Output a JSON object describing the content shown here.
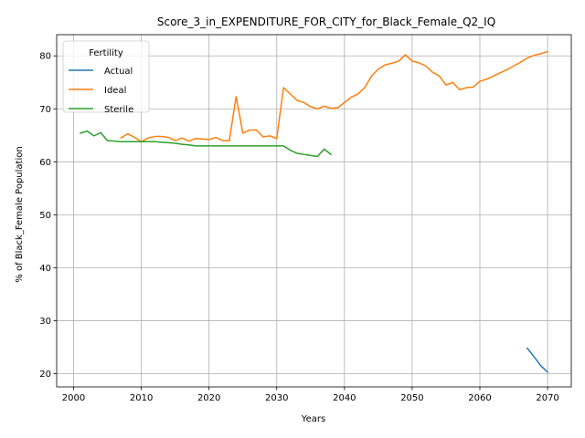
{
  "chart_data": {
    "type": "line",
    "title": "Score_3_in_EXPENDITURE_FOR_CITY_for_Black_Female_Q2_IQ",
    "xlabel": "Years",
    "ylabel": "% of Black_Female Population",
    "xlim": [
      1997.5,
      2073.5
    ],
    "ylim": [
      17.5,
      84
    ],
    "xticks": [
      2000,
      2010,
      2020,
      2030,
      2040,
      2050,
      2060,
      2070
    ],
    "yticks": [
      20,
      30,
      40,
      50,
      60,
      70,
      80
    ],
    "grid": true,
    "legend": {
      "title": "Fertility",
      "placement": "upper-left"
    },
    "series": [
      {
        "name": "Actual",
        "color": "#1f77b4",
        "x": [
          2067,
          2068,
          2069,
          2070
        ],
        "y": [
          24.8,
          23.2,
          21.5,
          20.3
        ]
      },
      {
        "name": "Ideal",
        "color": "#ff7f0e",
        "x": [
          2007,
          2008,
          2009,
          2010,
          2011,
          2012,
          2013,
          2014,
          2015,
          2016,
          2017,
          2018,
          2019,
          2020,
          2021,
          2022,
          2023,
          2024,
          2025,
          2026,
          2027,
          2028,
          2029,
          2030,
          2031,
          2032,
          2033,
          2034,
          2035,
          2036,
          2037,
          2038,
          2039,
          2040,
          2041,
          2042,
          2043,
          2044,
          2045,
          2046,
          2047,
          2048,
          2049,
          2050,
          2051,
          2052,
          2053,
          2054,
          2055,
          2056,
          2057,
          2058,
          2059,
          2060,
          2061,
          2062,
          2063,
          2064,
          2065,
          2066,
          2067,
          2068,
          2069,
          2070
        ],
        "y": [
          64.5,
          65.3,
          64.6,
          63.8,
          64.5,
          64.8,
          64.8,
          64.6,
          64.0,
          64.5,
          63.9,
          64.4,
          64.3,
          64.2,
          64.6,
          64.0,
          64.0,
          72.3,
          65.4,
          66.0,
          66.0,
          64.7,
          64.9,
          64.4,
          74.0,
          72.8,
          71.6,
          71.2,
          70.4,
          70.0,
          70.5,
          70.1,
          70.2,
          71.2,
          72.2,
          72.8,
          74.0,
          76.2,
          77.5,
          78.3,
          78.6,
          79.0,
          80.2,
          79.0,
          78.7,
          78.1,
          76.9,
          76.2,
          74.5,
          75.0,
          73.6,
          74.0,
          74.1,
          75.2,
          75.6,
          76.2,
          76.8,
          77.4,
          78.1,
          78.8,
          79.6,
          80.1,
          80.4,
          80.8
        ]
      },
      {
        "name": "Sterile",
        "color": "#2ca02c",
        "x": [
          2001,
          2002,
          2003,
          2004,
          2005,
          2006,
          2007,
          2008,
          2009,
          2010,
          2011,
          2012,
          2013,
          2014,
          2015,
          2016,
          2017,
          2018,
          2019,
          2020,
          2021,
          2022,
          2023,
          2024,
          2025,
          2026,
          2027,
          2028,
          2029,
          2030,
          2031,
          2032,
          2033,
          2034,
          2035,
          2036,
          2037,
          2038
        ],
        "y": [
          65.4,
          65.8,
          64.9,
          65.5,
          64.0,
          63.9,
          63.8,
          63.8,
          63.8,
          63.8,
          63.8,
          63.8,
          63.7,
          63.6,
          63.5,
          63.3,
          63.2,
          63.0,
          63.0,
          63.0,
          63.0,
          63.0,
          63.0,
          63.0,
          63.0,
          63.0,
          63.0,
          63.0,
          63.0,
          63.0,
          63.0,
          62.2,
          61.6,
          61.4,
          61.2,
          61.0,
          62.4,
          61.4
        ]
      }
    ]
  }
}
